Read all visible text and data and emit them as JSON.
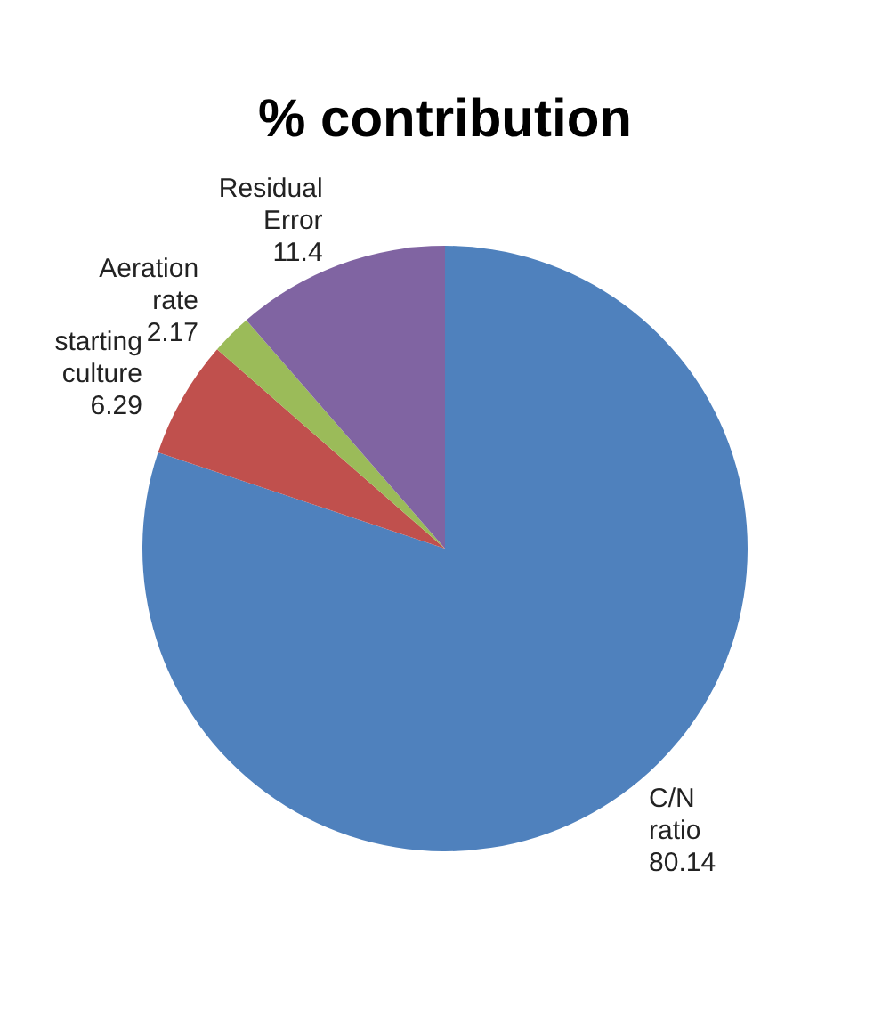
{
  "chart_data": {
    "type": "pie",
    "title": "% contribution",
    "categories": [
      "C/N ratio",
      "starting culture",
      "Aeration rate",
      "Residual Error"
    ],
    "values": [
      80.14,
      6.29,
      2.17,
      11.4
    ],
    "colors": [
      "#4f81bd",
      "#c0504d",
      "#9bbb59",
      "#8064a2"
    ],
    "data_labels": true,
    "legend": false
  }
}
